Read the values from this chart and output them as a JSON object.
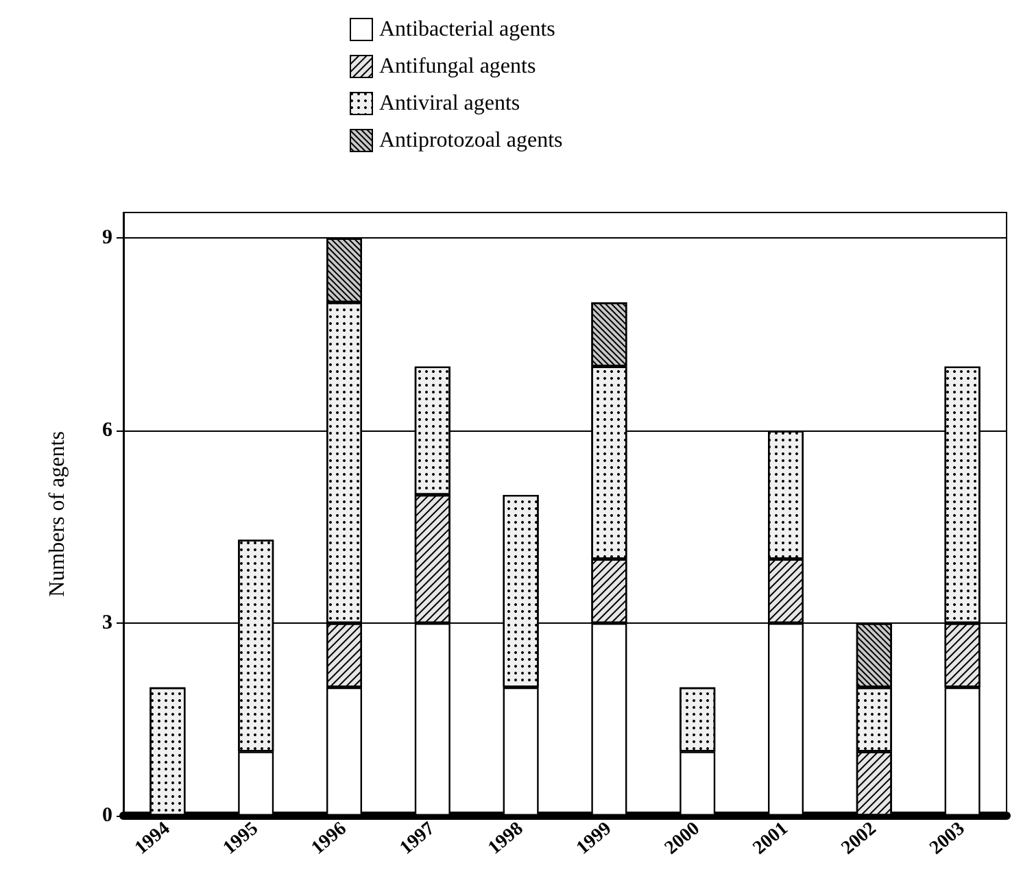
{
  "chart_data": {
    "type": "bar",
    "stacked": true,
    "ylabel": "Numbers of agents",
    "categories": [
      "1994",
      "1995",
      "1996",
      "1997",
      "1998",
      "1999",
      "2000",
      "2001",
      "2002",
      "2003"
    ],
    "series": [
      {
        "name": "Antibacterial agents",
        "color": "#ffffff",
        "values": [
          0,
          1,
          2,
          3,
          2,
          3,
          1,
          3,
          0,
          2
        ]
      },
      {
        "name": "Antifungal agents",
        "color": "#e6e6e6",
        "values": [
          0,
          0,
          1,
          2,
          0,
          1,
          0,
          1,
          1,
          1
        ]
      },
      {
        "name": "Antiviral agents",
        "color": "#f0f0f0",
        "values": [
          2,
          3.3,
          5,
          2,
          3,
          3,
          1,
          2,
          1,
          4
        ]
      },
      {
        "name": "Antiprotozoal agents",
        "color": "#c8c8c8",
        "values": [
          0,
          0,
          1,
          0,
          0,
          1,
          0,
          0,
          1,
          0
        ]
      }
    ],
    "ylim": [
      0,
      9.4
    ],
    "yticks": [
      0,
      3,
      6,
      9
    ],
    "grid": "y",
    "legend": "top"
  }
}
